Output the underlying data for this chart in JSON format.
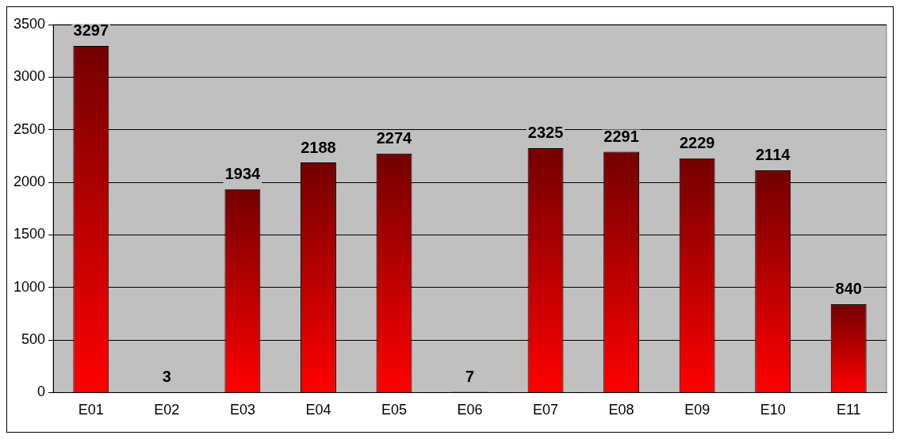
{
  "chart_data": {
    "type": "bar",
    "categories": [
      "E01",
      "E02",
      "E03",
      "E04",
      "E05",
      "E06",
      "E07",
      "E08",
      "E09",
      "E10",
      "E11"
    ],
    "values": [
      3297,
      3,
      1934,
      2188,
      2274,
      7,
      2325,
      2291,
      2229,
      2114,
      840
    ],
    "color": "#ff0000",
    "ylim": [
      0,
      3500
    ],
    "yticks": [
      0,
      500,
      1000,
      1500,
      2000,
      2500,
      3000,
      3500
    ],
    "grid": "y",
    "legend": false,
    "data_labels": true
  }
}
